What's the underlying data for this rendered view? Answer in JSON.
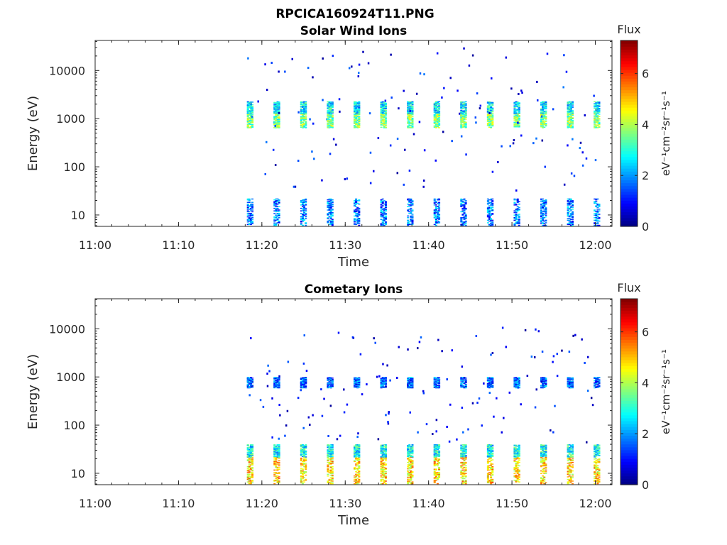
{
  "figure": {
    "title": "RPCICA160924T11.PNG"
  },
  "colors": {
    "colormap": "jet",
    "axis": "#262626",
    "background": "#ffffff"
  },
  "chart_data": [
    {
      "type": "heatmap",
      "title": "Solar Wind Ions",
      "xlabel": "Time",
      "ylabel": "Energy (eV)",
      "x_ticks": [
        "11:00",
        "11:10",
        "11:20",
        "11:30",
        "11:40",
        "11:50",
        "12:00"
      ],
      "x_range": [
        "11:00",
        "12:02"
      ],
      "y_scale": "log",
      "y_ticks": [
        "10",
        "100",
        "1000",
        "10000"
      ],
      "y_range": [
        5.8,
        42000
      ],
      "colorbar": {
        "label": "Flux",
        "unit": "eV⁻¹cm⁻²sr⁻¹s⁻¹",
        "ticks": [
          "0",
          "2",
          "4",
          "6"
        ],
        "range": [
          0,
          7.3
        ]
      },
      "cycles": {
        "start": "11:18.2",
        "end": "12:01",
        "period_min": 3.2
      },
      "bands": [
        {
          "e_low": 650,
          "e_high": 1300,
          "flux": 3.6,
          "note": "main solar wind peak"
        },
        {
          "e_low": 1300,
          "e_high": 2300,
          "flux": 2.6
        },
        {
          "e_low": 6,
          "e_high": 22,
          "flux": 1.8,
          "note": "low-energy bursts"
        }
      ],
      "scatter": {
        "e_low": 30,
        "e_high": 30000,
        "flux": 1.0
      }
    },
    {
      "type": "heatmap",
      "title": "Cometary Ions",
      "xlabel": "Time",
      "ylabel": "Energy (eV)",
      "x_ticks": [
        "11:00",
        "11:10",
        "11:20",
        "11:30",
        "11:40",
        "11:50",
        "12:00"
      ],
      "x_range": [
        "11:00",
        "12:02"
      ],
      "y_scale": "log",
      "y_ticks": [
        "10",
        "100",
        "1000",
        "10000"
      ],
      "y_range": [
        5.8,
        42000
      ],
      "colorbar": {
        "label": "Flux",
        "unit": "eV⁻¹cm⁻²sr⁻¹s⁻¹",
        "ticks": [
          "0",
          "2",
          "4",
          "6"
        ],
        "range": [
          0,
          7.3
        ]
      },
      "cycles": {
        "start": "11:18.2",
        "end": "12:01",
        "period_min": 3.2
      },
      "bands": [
        {
          "e_low": 6,
          "e_high": 22,
          "flux": 4.8,
          "note": "cometary ion peak"
        },
        {
          "e_low": 22,
          "e_high": 40,
          "flux": 2.8
        },
        {
          "e_low": 600,
          "e_high": 1000,
          "flux": 1.6
        }
      ],
      "scatter": {
        "e_low": 40,
        "e_high": 11000,
        "flux": 0.9
      }
    }
  ]
}
